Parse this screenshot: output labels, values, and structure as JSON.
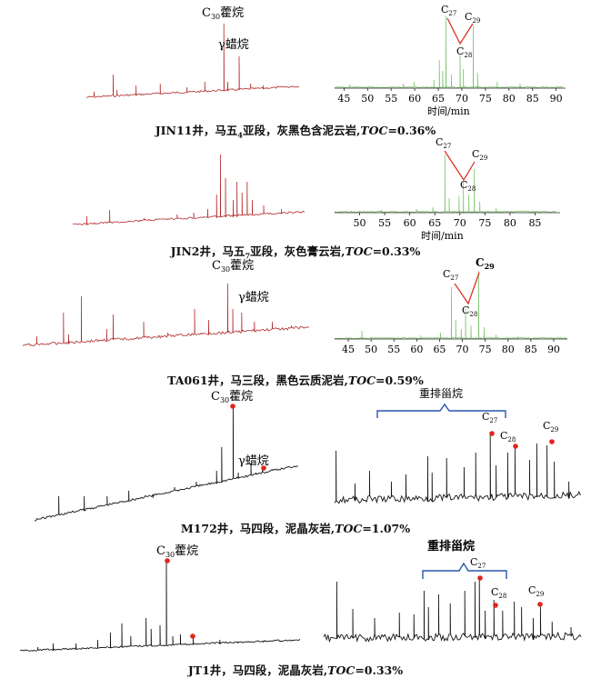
{
  "axis_label": "时间/min",
  "sterane_left": "C",
  "sterane_left_sub": "27",
  "sterane_mid": "C",
  "sterane_mid_sub": "28",
  "sterane_right": "C",
  "sterane_right_sub": "29",
  "c30_prefix": "C",
  "c30_sub": "30",
  "c30_name": "藿烷",
  "gamma_label": "γ蜡烷",
  "rearranged_label": "重排甾烷",
  "colors": {
    "red": "#b22a2a",
    "green": "#7cc46b",
    "black": "#141414",
    "marker": "#e0241c",
    "bracket": "#2a55b0"
  },
  "panels": [
    {
      "caption": {
        "well": "JIN11井，马五",
        "sub": "4",
        "rest": "亚段，灰黑色含泥云岩,",
        "toc": "TOC",
        "value": "=0.36%"
      },
      "x_ticks": [
        "45",
        "50",
        "55",
        "60",
        "65",
        "70",
        "75",
        "80",
        "85",
        "90"
      ]
    },
    {
      "caption": {
        "well": "JIN2井，马五",
        "sub": "7",
        "rest": "亚段，灰色膏云岩,",
        "toc": "TOC",
        "value": "=0.33%"
      },
      "x_ticks": [
        "50",
        "55",
        "60",
        "65",
        "70",
        "75",
        "80",
        "85"
      ]
    },
    {
      "caption": {
        "well": "TA061井，马三段，黑色云质泥岩,",
        "sub": "",
        "rest": "",
        "toc": "TOC",
        "value": "=0.59%"
      },
      "x_ticks": [
        "45",
        "50",
        "55",
        "60",
        "65",
        "70",
        "75",
        "80",
        "85",
        "90"
      ]
    },
    {
      "caption": {
        "well": "M172井，马四段，泥晶灰岩,",
        "sub": "",
        "rest": "",
        "toc": "TOC",
        "value": "=1.07%"
      },
      "x_ticks": []
    },
    {
      "caption": {
        "well": "JT1井，马四段，泥晶灰岩,",
        "sub": "",
        "rest": "",
        "toc": "TOC",
        "value": "=0.33%"
      },
      "x_ticks": []
    }
  ]
}
